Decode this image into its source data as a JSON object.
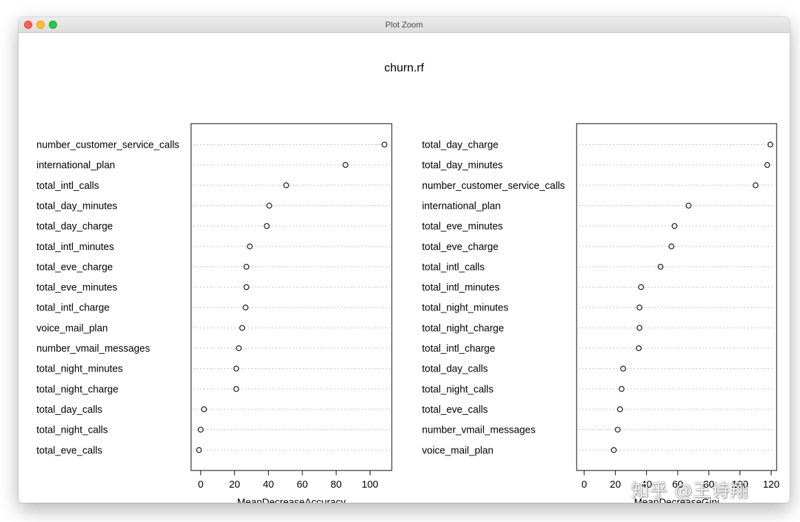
{
  "window": {
    "title": "Plot Zoom"
  },
  "chart_data": [
    {
      "type": "scatter",
      "title": "churn.rf",
      "xlabel": "MeanDecreaseAccuracy",
      "ylabel": "",
      "xlim": [
        -5,
        113
      ],
      "xticks": [
        0,
        20,
        40,
        60,
        80,
        100
      ],
      "grid": "dotted horizontal",
      "categories": [
        "number_customer_service_calls",
        "international_plan",
        "total_intl_calls",
        "total_day_minutes",
        "total_day_charge",
        "total_intl_minutes",
        "total_eve_charge",
        "total_eve_minutes",
        "total_intl_charge",
        "voice_mail_plan",
        "number_vmail_messages",
        "total_night_minutes",
        "total_night_charge",
        "total_day_calls",
        "total_night_calls",
        "total_eve_calls"
      ],
      "values": [
        108.5,
        85.5,
        50.5,
        40.5,
        39,
        29,
        27,
        27,
        26.5,
        24.5,
        22.5,
        21,
        21,
        2,
        0,
        -1
      ]
    },
    {
      "type": "scatter",
      "xlabel": "MeanDecreaseGini",
      "ylabel": "",
      "xlim": [
        -5,
        124
      ],
      "xticks": [
        0,
        20,
        40,
        60,
        80,
        100,
        120
      ],
      "grid": "dotted horizontal",
      "categories": [
        "total_day_charge",
        "total_day_minutes",
        "number_customer_service_calls",
        "international_plan",
        "total_eve_minutes",
        "total_eve_charge",
        "total_intl_calls",
        "total_intl_minutes",
        "total_night_minutes",
        "total_night_charge",
        "total_intl_charge",
        "total_day_calls",
        "total_night_calls",
        "total_eve_calls",
        "number_vmail_messages",
        "voice_mail_plan"
      ],
      "values": [
        119.5,
        117.5,
        110,
        67,
        58,
        56,
        49,
        36.5,
        35.5,
        35.5,
        35,
        25,
        24,
        23,
        21.5,
        19
      ]
    }
  ],
  "watermark": "知乎 @王诗翔",
  "colors": {
    "background": "#ffffff",
    "axis": "#000000",
    "grid": "#bfbfbf"
  }
}
